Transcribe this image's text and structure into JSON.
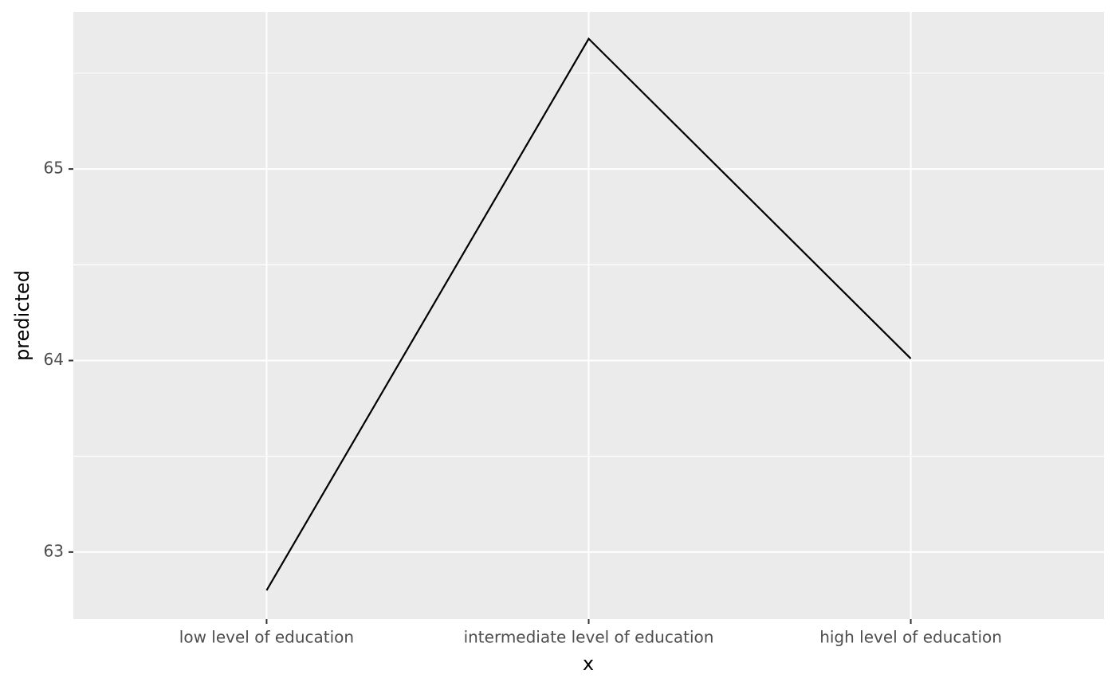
{
  "chart_data": {
    "type": "line",
    "x_label": "x",
    "y_label": "predicted",
    "categories": [
      "low level of education",
      "intermediate level of education",
      "high level of education"
    ],
    "values": [
      62.8,
      65.68,
      64.01
    ],
    "color": "#000000",
    "ylim": [
      62.65,
      65.82
    ],
    "yticks": [
      63,
      64,
      65
    ],
    "grid": true
  }
}
